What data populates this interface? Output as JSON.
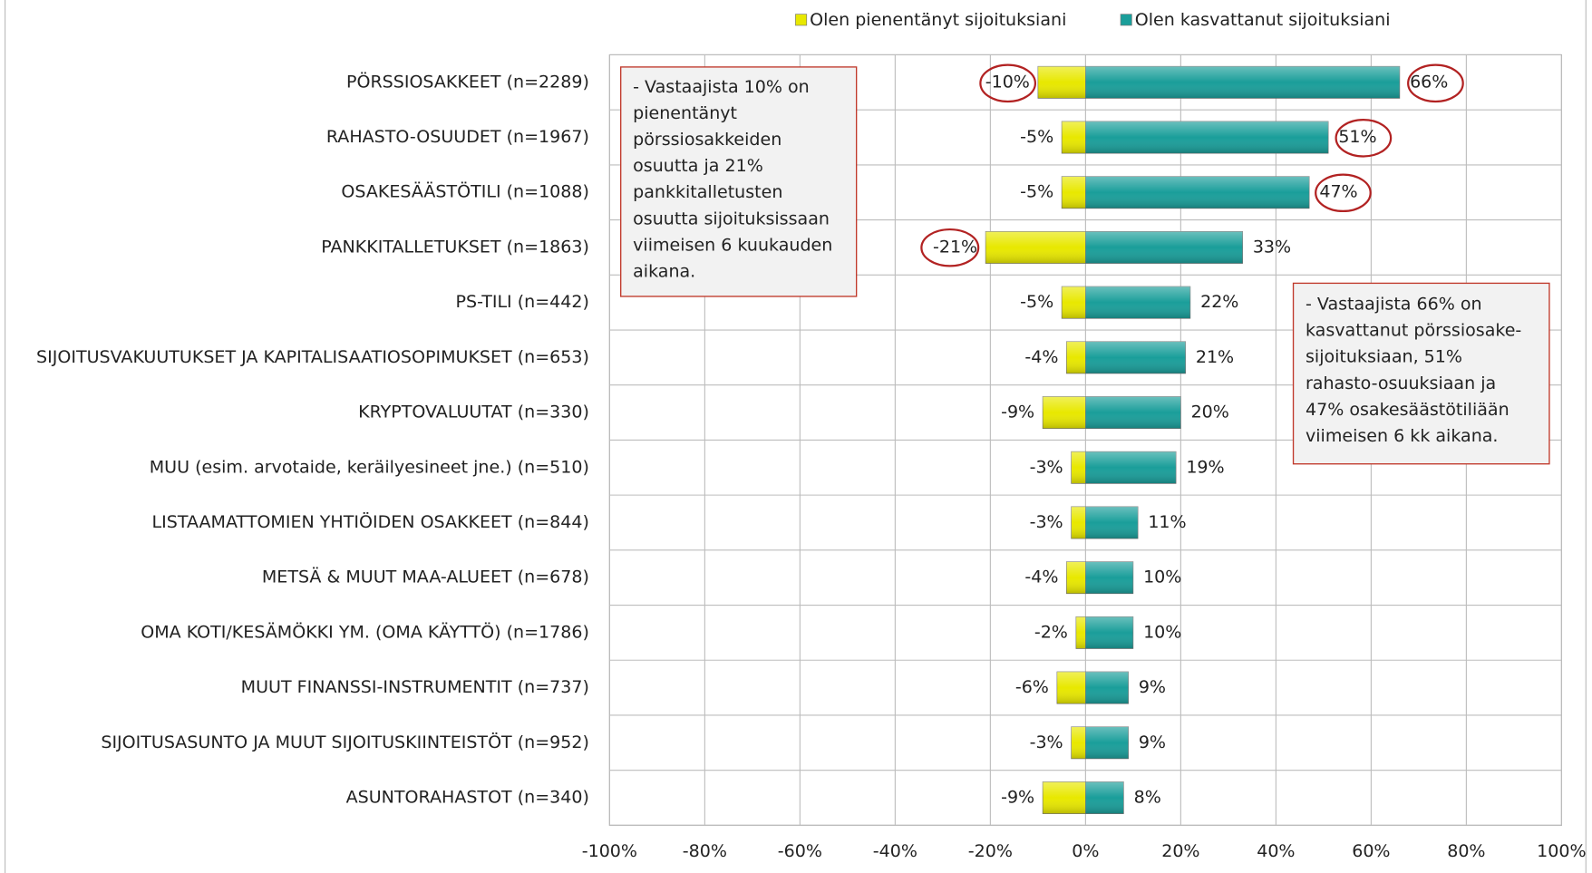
{
  "chart_data": {
    "type": "diverging-bar",
    "categories": [
      "PÖRSSIOSAKKEET (n=2289)",
      "RAHASTO-OSUUDET (n=1967)",
      "OSAKESÄÄSTÖTILI (n=1088)",
      "PANKKITALLETUKSET (n=1863)",
      "PS-TILI (n=442)",
      "SIJOITUSVAKUUTUKSET JA KAPITALISAATIOSOPIMUKSET (n=653)",
      "KRYPTOVALUUTAT (n=330)",
      "MUU (esim. arvotaide, keräilyesineet jne.) (n=510)",
      "LISTAAMATTOMIEN YHTIÖIDEN OSAKKEET (n=844)",
      "METSÄ & MUUT MAA-ALUEET (n=678)",
      "OMA KOTI/KESÄMÖKKI YM. (OMA KÄYTTÖ) (n=1786)",
      "MUUT FINANSSI-INSTRUMENTIT (n=737)",
      "SIJOITUSASUNTO JA MUUT SIJOITUSKIINTEISTÖT (n=952)",
      "ASUNTORAHASTOT (n=340)"
    ],
    "series": [
      {
        "name": "Olen pienentänyt sijoituksiani",
        "color": "#e8e800",
        "values": [
          -10,
          -5,
          -5,
          -21,
          -5,
          -4,
          -9,
          -3,
          -3,
          -4,
          -2,
          -6,
          -3,
          -9
        ],
        "value_labels": [
          "-10%",
          "-5%",
          "-5%",
          "-21%",
          "-5%",
          "-4%",
          "-9%",
          "-3%",
          "-3%",
          "-4%",
          "-2%",
          "-6%",
          "-3%",
          "-9%"
        ]
      },
      {
        "name": "Olen kasvattanut sijoituksiani",
        "color": "#1a9e9a",
        "values": [
          66,
          51,
          47,
          33,
          22,
          21,
          20,
          19,
          11,
          10,
          10,
          9,
          9,
          8
        ],
        "value_labels": [
          "66%",
          "51%",
          "47%",
          "33%",
          "22%",
          "21%",
          "20%",
          "19%",
          "11%",
          "10%",
          "10%",
          "9%",
          "9%",
          "8%"
        ]
      }
    ],
    "xlim": [
      -100,
      100
    ],
    "xticks": [
      {
        "value": -100,
        "label": "-100%"
      },
      {
        "value": -80,
        "label": "-80%"
      },
      {
        "value": -60,
        "label": "-60%"
      },
      {
        "value": -40,
        "label": "-40%"
      },
      {
        "value": -20,
        "label": "-20%"
      },
      {
        "value": 0,
        "label": "0%"
      },
      {
        "value": 20,
        "label": "20%"
      },
      {
        "value": 40,
        "label": "40%"
      },
      {
        "value": 60,
        "label": "60%"
      },
      {
        "value": 80,
        "label": "80%"
      },
      {
        "value": 100,
        "label": "100%"
      }
    ],
    "grid": true,
    "legend": "top",
    "annotations": [
      {
        "lines": [
          "- Vastaajista 10% on",
          "pienentänyt",
          "pörssiosakkeiden",
          "osuutta ja 21%",
          "pankkitalletusten",
          "osuutta sijoituksissaan",
          "viimeisen 6 kuukauden",
          "aikana."
        ]
      },
      {
        "lines": [
          "- Vastaajista 66% on",
          "kasvattanut pörssiosake-",
          "sijoituksiaan, 51%",
          "rahasto-osuuksiaan ja",
          "47% osakesäästötiliään",
          "viimeisen 6 kk aikana."
        ]
      }
    ]
  }
}
